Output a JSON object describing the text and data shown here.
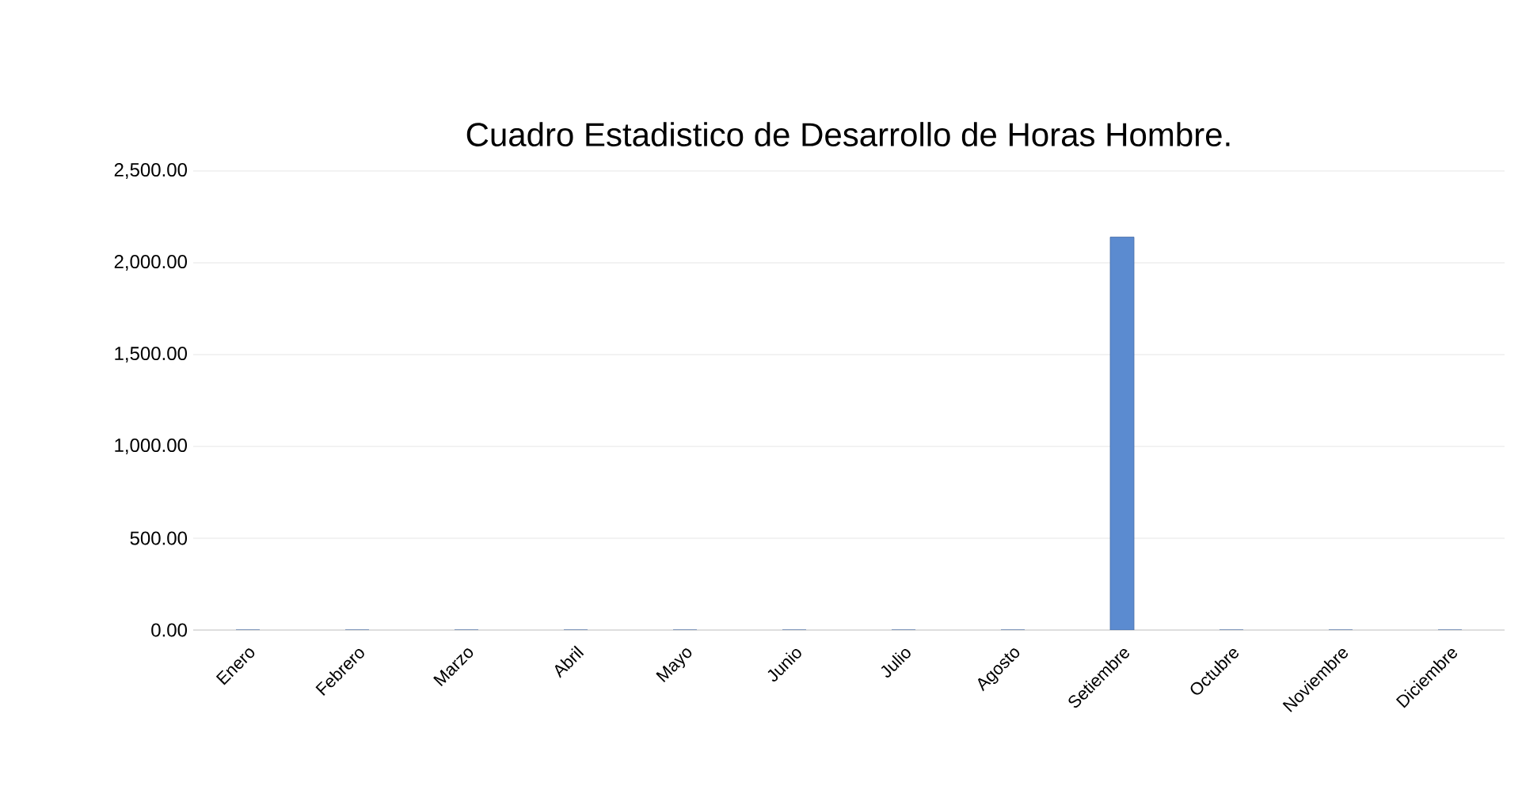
{
  "chart_data": {
    "type": "bar",
    "title": "Cuadro Estadistico de Desarrollo de Horas Hombre.",
    "categories": [
      "Enero",
      "Febrero",
      "Marzo",
      "Abril",
      "Mayo",
      "Junio",
      "Julio",
      "Agosto",
      "Setiembre",
      "Octubre",
      "Noviembre",
      "Diciembre"
    ],
    "values": [
      0,
      0,
      0,
      0,
      0,
      0,
      0,
      0,
      2140,
      0,
      0,
      0
    ],
    "color": "#5b8bd0",
    "ylim": [
      0,
      2500
    ],
    "yticks": [
      {
        "value": 0,
        "label": "0.00"
      },
      {
        "value": 500,
        "label": "500.00"
      },
      {
        "value": 1000,
        "label": "1,000.00"
      },
      {
        "value": 1500,
        "label": "1,500.00"
      },
      {
        "value": 2000,
        "label": "2,000.00"
      },
      {
        "value": 2500,
        "label": "2,500.00"
      }
    ],
    "grid": "y"
  }
}
